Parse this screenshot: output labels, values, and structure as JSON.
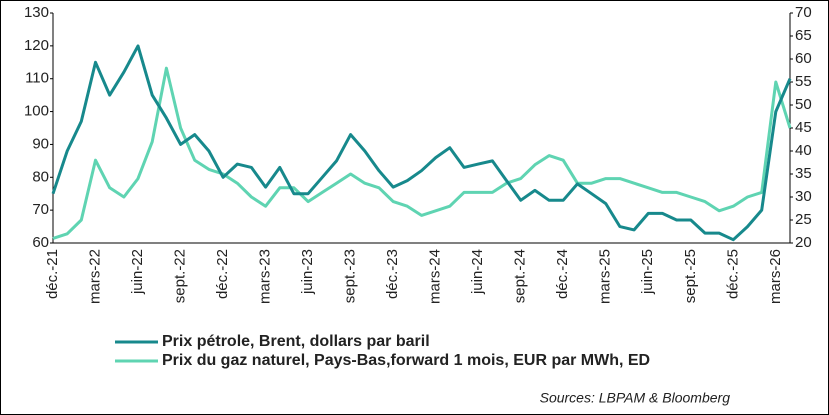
{
  "chart_data": {
    "type": "line",
    "categories": [
      "déc.-21",
      null,
      null,
      "mars-22",
      null,
      null,
      "juin-22",
      null,
      null,
      "sept.-22",
      null,
      null,
      "déc.-22",
      null,
      null,
      "mars-23",
      null,
      null,
      "juin-23",
      null,
      null,
      "sept.-23",
      null,
      null,
      "déc.-23",
      null,
      null,
      "mars-24",
      null,
      null,
      "juin-24",
      null,
      null,
      "sept.-24",
      null,
      null,
      "déc.-24",
      null,
      null,
      "mars-25",
      null,
      null,
      "juin-25",
      null,
      null,
      "sept.-25",
      null,
      null,
      "déc.-25",
      null,
      null,
      "mars-26",
      null
    ],
    "series": [
      {
        "name": "Prix pétrole, Brent, dollars par baril",
        "color": "#17898c",
        "axis": "y",
        "values": [
          75,
          88,
          97,
          115,
          105,
          112,
          120,
          105,
          98,
          90,
          93,
          88,
          80,
          84,
          83,
          77,
          83,
          75,
          75,
          80,
          85,
          93,
          88,
          82,
          77,
          79,
          82,
          86,
          89,
          83,
          84,
          85,
          79,
          73,
          76,
          73,
          73,
          78,
          75,
          72,
          65,
          64,
          69,
          69,
          67,
          67,
          63,
          63,
          61,
          65,
          70,
          100,
          110
        ]
      },
      {
        "name": "Prix du gaz naturel, Pays-Bas,forward 1 mois, EUR par MWh, ED",
        "color": "#5fd4b2",
        "axis": "y2",
        "values": [
          21,
          22,
          25,
          38,
          32,
          30,
          34,
          42,
          58,
          45,
          38,
          36,
          35,
          33,
          30,
          28,
          32,
          32,
          29,
          31,
          33,
          35,
          33,
          32,
          29,
          28,
          26,
          27,
          28,
          31,
          31,
          31,
          33,
          34,
          37,
          39,
          38,
          33,
          33,
          34,
          34,
          33,
          32,
          31,
          31,
          30,
          29,
          27,
          28,
          30,
          31,
          55,
          45
        ]
      }
    ],
    "ylim": [
      60,
      130
    ],
    "yticks": [
      60,
      70,
      80,
      90,
      100,
      110,
      120,
      130
    ],
    "y2lim": [
      20,
      70
    ],
    "y2ticks": [
      20,
      25,
      30,
      35,
      40,
      45,
      50,
      55,
      60,
      65,
      70
    ],
    "grid": false,
    "legend": "bottom",
    "source": "Sources: LBPAM & Bloomberg"
  }
}
